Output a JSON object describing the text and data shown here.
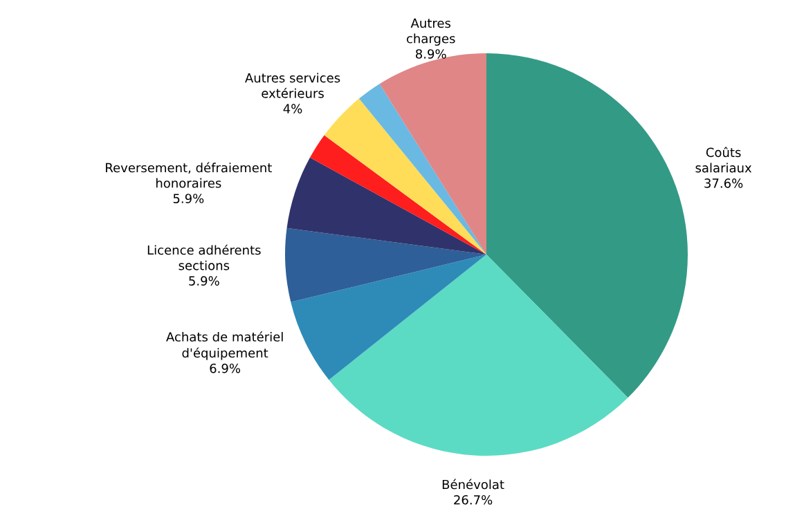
{
  "chart_data": {
    "type": "pie",
    "categories": [
      "Coûts\nsalariaux",
      "Bénévolat",
      "Achats de matériel\nd'équipement",
      "Licence adhérents\nsections",
      "Reversement, défraiement\nhonoraires",
      null,
      "Autres services\nextérieurs",
      null,
      "Autres\ncharges"
    ],
    "values": [
      37.6,
      26.7,
      6.9,
      5.9,
      5.9,
      2.1,
      4,
      2.0,
      8.9
    ],
    "colors": [
      "#339a86",
      "#5bdbc3",
      "#2e8bb8",
      "#2e5f98",
      "#30336b",
      "#ff1e1e",
      "#ffdd59",
      "#69b9e3",
      "#e08686"
    ],
    "value_labels": [
      "37.6%",
      "26.7%",
      "6.9%",
      "5.9%",
      "5.9%",
      null,
      "4%",
      null,
      "8.9%"
    ],
    "legend": false
  }
}
